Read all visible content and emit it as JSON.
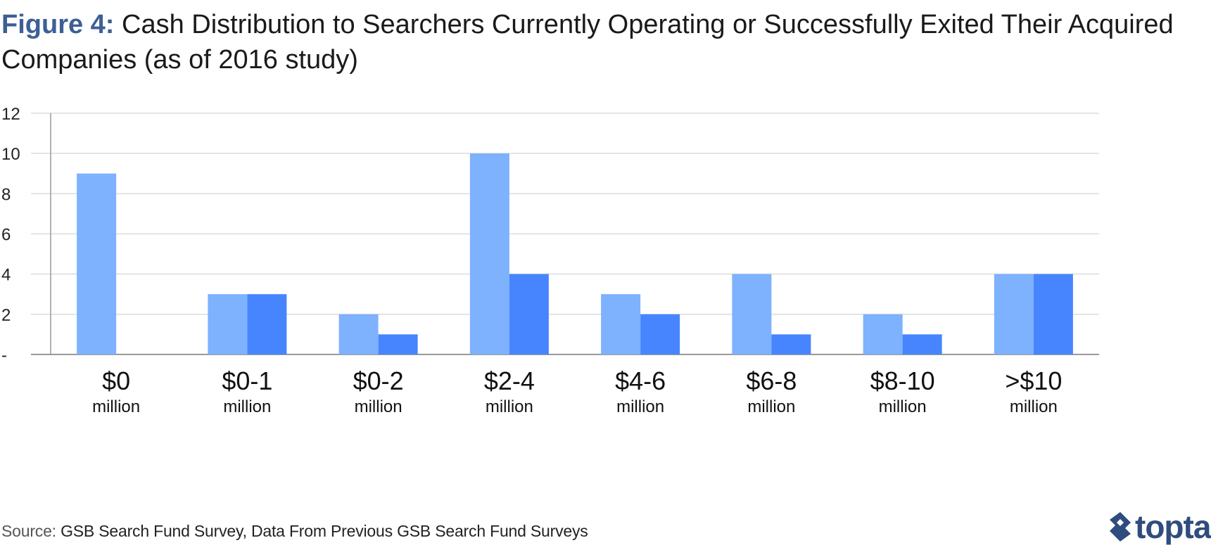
{
  "title": {
    "figure_label": "Figure 4:",
    "text": "Cash Distribution to Searchers Currently Operating or Successfully Exited Their Acquired Companies (as of 2016 study)"
  },
  "source": {
    "label": "Source:",
    "text": "GSB Search Fund Survey, Data From Previous GSB Search Fund Surveys"
  },
  "brand": {
    "name": "toptal",
    "icon": "toptal-logo-icon"
  },
  "colors": {
    "series_1": "#7eb1fe",
    "series_2": "#4785ff",
    "grid": "#dcdcdc",
    "axis": "#999999",
    "title_accent": "#3d5f95"
  },
  "chart_data": {
    "type": "bar",
    "categories": [
      {
        "amount": "$0",
        "unit": "million"
      },
      {
        "amount": "$0-1",
        "unit": "million"
      },
      {
        "amount": "$0-2",
        "unit": "million"
      },
      {
        "amount": "$2-4",
        "unit": "million"
      },
      {
        "amount": "$4-6",
        "unit": "million"
      },
      {
        "amount": "$6-8",
        "unit": "million"
      },
      {
        "amount": "$8-10",
        "unit": "million"
      },
      {
        "amount": ">$10",
        "unit": "million"
      }
    ],
    "series": [
      {
        "values": [
          9,
          3,
          2,
          10,
          3,
          4,
          2,
          4
        ]
      },
      {
        "values": [
          0,
          3,
          1,
          4,
          2,
          1,
          1,
          4
        ]
      }
    ],
    "y_ticks": [
      "-",
      "2",
      "4",
      "6",
      "8",
      "10",
      "12"
    ],
    "ylim": [
      0,
      12
    ],
    "grid": true,
    "legend": "none"
  }
}
